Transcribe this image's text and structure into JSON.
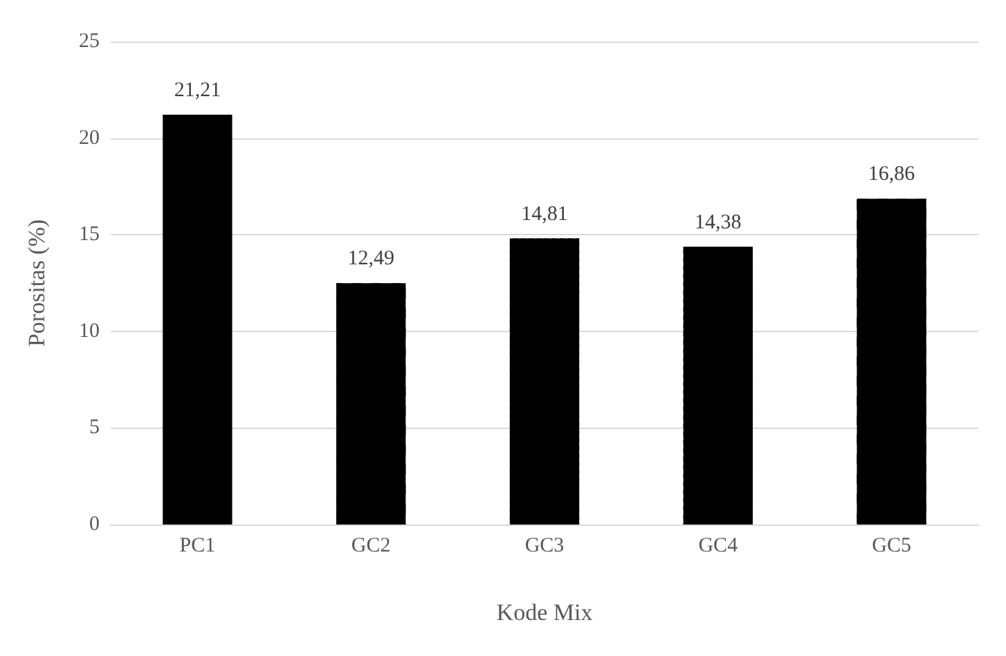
{
  "chart_data": {
    "type": "bar",
    "xlabel": "Kode Mix",
    "ylabel": "Porositas (%)",
    "categories": [
      "PC1",
      "GC2",
      "GC3",
      "GC4",
      "GC5"
    ],
    "values": [
      21.21,
      12.49,
      14.81,
      14.38,
      16.86
    ],
    "value_labels": [
      "21,21",
      "12,49",
      "14,81",
      "14,38",
      "16,86"
    ],
    "colors": [
      "#000000",
      "#000000",
      "#000000",
      "#000000",
      "#000000"
    ],
    "ylim": [
      0,
      25
    ],
    "yticks": [
      0,
      5,
      10,
      15,
      20,
      25
    ],
    "grid": "y"
  }
}
